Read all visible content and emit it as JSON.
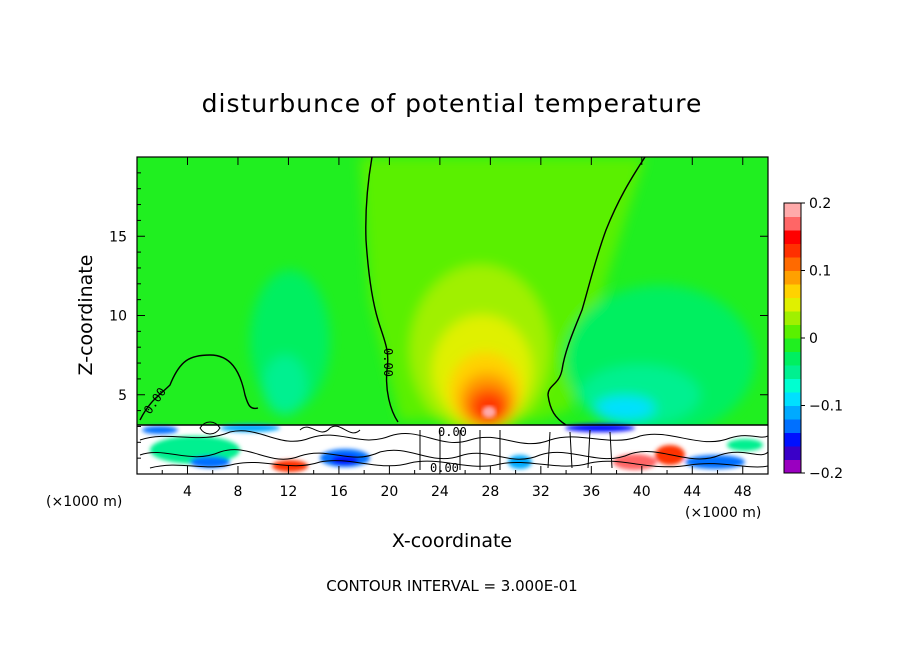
{
  "chart_data": {
    "type": "heatmap",
    "title": "disturbunce of potential temperature",
    "xlabel": "X-coordinate",
    "ylabel": "Z-coordinate",
    "x_unit_left": "(×1000 m)",
    "x_unit_right": "(×1000 m)",
    "xlim": [
      0,
      50
    ],
    "ylim": [
      0,
      20
    ],
    "x_ticks": [
      4,
      8,
      12,
      16,
      20,
      24,
      28,
      32,
      36,
      40,
      44,
      48
    ],
    "y_ticks": [
      5,
      10,
      15
    ],
    "contour_labels": [
      "0.00",
      "0.00",
      "0.00",
      "0.00"
    ],
    "footer": "CONTOUR INTERVAL = 3.000E-01",
    "colorbar": {
      "min": -0.2,
      "max": 0.2,
      "tick_labels": [
        "0.2",
        "0.1",
        "0",
        "−0.1",
        "−0.2"
      ],
      "tick_values": [
        0.2,
        0.1,
        0,
        -0.1,
        -0.2
      ],
      "colors": [
        "#9a00c0",
        "#3a00c8",
        "#0010ff",
        "#0070ff",
        "#00aaff",
        "#00e0ff",
        "#00ffd0",
        "#00f090",
        "#00ef60",
        "#20ef20",
        "#5af000",
        "#a0f000",
        "#e0f000",
        "#ffd200",
        "#ffa000",
        "#ff6a00",
        "#ff3000",
        "#ff0000",
        "#ff6666",
        "#ffaaaa"
      ]
    }
  }
}
